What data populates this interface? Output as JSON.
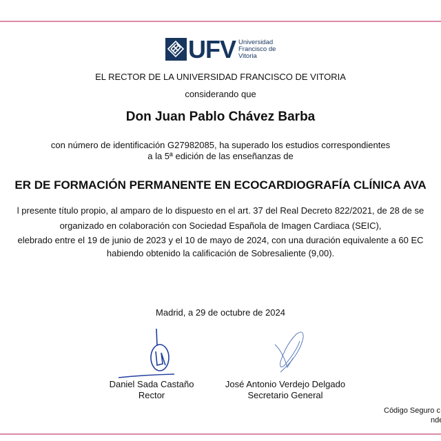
{
  "logo": {
    "acronym": "UFV",
    "name_lines": [
      "Universidad",
      "Francisco de",
      "Vitoria"
    ],
    "color": "#17365f"
  },
  "header": "EL RECTOR DE LA UNIVERSIDAD FRANCISCO DE VITORIA",
  "considering": "considerando que",
  "recipient": "Don Juan Pablo Chávez Barba",
  "id_lines": [
    "con número de identificación G27982085, ha superado los estudios correspondientes",
    "a la 5ª edición de las enseñanzas de"
  ],
  "program_title": "ER DE FORMACIÓN PERMANENTE EN ECOCARDIOGRAFÍA CLÍNICA AVA",
  "body_lines": [
    "l presente título propio, al amparo de lo dispuesto en el art. 37 del Real Decreto 822/2021, de 28 de se",
    "organizado en colaboración con Sociedad Española de Imagen Cardiaca (SEIC),",
    "elebrado entre el 19 de junio de 2023 y el 10 de mayo de 2024, con una duración equivalente a 60 EC",
    "habiendo obtenido la calificación de Sobresaliente (9,00)."
  ],
  "place_date": "Madrid, a 29 de octubre de 2024",
  "signatories": [
    {
      "name": "Daniel Sada Castaño",
      "role": "Rector"
    },
    {
      "name": "José Antonio Verdejo Delgado",
      "role": "Secretario General"
    }
  ],
  "footer_lines": [
    "Código Seguro c",
    "nde"
  ],
  "border_color": "#d98aa6"
}
